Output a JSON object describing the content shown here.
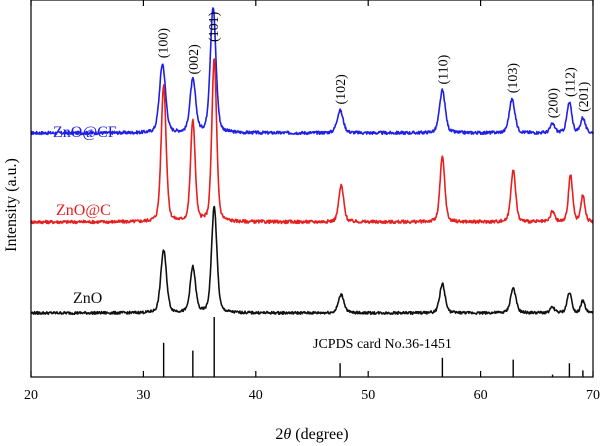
{
  "chart_data": {
    "type": "line",
    "xlabel_pre": "2",
    "xlabel_theta": "θ",
    "xlabel_post": " (degree)",
    "ylabel": "Intensity (a.u.)",
    "xlim": [
      20,
      70
    ],
    "xticks": [
      20,
      30,
      40,
      50,
      60,
      70
    ],
    "colors": {
      "ZnO@CF": "#1f1fe6",
      "ZnO@C": "#e61f1f",
      "ZnO": "#111111",
      "reference": "#000000"
    },
    "series": [
      {
        "name": "ZnO@CF",
        "peaks": [
          {
            "x": 31.7,
            "height": 0.55,
            "width": 0.32
          },
          {
            "x": 34.4,
            "height": 0.42,
            "width": 0.3
          },
          {
            "x": 36.2,
            "height": 1.0,
            "width": 0.3
          },
          {
            "x": 47.5,
            "height": 0.18,
            "width": 0.32
          },
          {
            "x": 56.6,
            "height": 0.34,
            "width": 0.3
          },
          {
            "x": 62.8,
            "height": 0.27,
            "width": 0.3
          },
          {
            "x": 66.4,
            "height": 0.07,
            "width": 0.25
          },
          {
            "x": 67.9,
            "height": 0.24,
            "width": 0.26
          },
          {
            "x": 69.1,
            "height": 0.12,
            "width": 0.24
          }
        ]
      },
      {
        "name": "ZnO@C",
        "peaks": [
          {
            "x": 31.8,
            "height": 1.05,
            "width": 0.26
          },
          {
            "x": 34.4,
            "height": 0.78,
            "width": 0.24
          },
          {
            "x": 36.3,
            "height": 1.25,
            "width": 0.25
          },
          {
            "x": 47.6,
            "height": 0.28,
            "width": 0.26
          },
          {
            "x": 56.6,
            "height": 0.5,
            "width": 0.25
          },
          {
            "x": 62.9,
            "height": 0.4,
            "width": 0.25
          },
          {
            "x": 66.4,
            "height": 0.08,
            "width": 0.22
          },
          {
            "x": 68.0,
            "height": 0.36,
            "width": 0.22
          },
          {
            "x": 69.1,
            "height": 0.2,
            "width": 0.22
          }
        ]
      },
      {
        "name": "ZnO",
        "peaks": [
          {
            "x": 31.8,
            "height": 0.58,
            "width": 0.3
          },
          {
            "x": 34.4,
            "height": 0.42,
            "width": 0.28
          },
          {
            "x": 36.3,
            "height": 0.98,
            "width": 0.28
          },
          {
            "x": 47.6,
            "height": 0.17,
            "width": 0.3
          },
          {
            "x": 56.6,
            "height": 0.27,
            "width": 0.28
          },
          {
            "x": 62.9,
            "height": 0.23,
            "width": 0.28
          },
          {
            "x": 66.4,
            "height": 0.05,
            "width": 0.24
          },
          {
            "x": 67.9,
            "height": 0.19,
            "width": 0.24
          },
          {
            "x": 69.1,
            "height": 0.11,
            "width": 0.22
          }
        ]
      }
    ],
    "peak_labels": [
      {
        "text": "(100)",
        "x": 31.7
      },
      {
        "text": "(002)",
        "x": 34.4
      },
      {
        "text": "(101)",
        "x": 36.2
      },
      {
        "text": "(102)",
        "x": 47.5
      },
      {
        "text": "(110)",
        "x": 56.6
      },
      {
        "text": "(103)",
        "x": 62.8
      },
      {
        "text": "(200)",
        "x": 66.4
      },
      {
        "text": "(112)",
        "x": 67.9
      },
      {
        "text": "(201)",
        "x": 69.1
      }
    ],
    "reference": {
      "label": "JCPDS card No.36-1451",
      "lines": [
        {
          "x": 31.8,
          "intensity": 0.57
        },
        {
          "x": 34.4,
          "intensity": 0.44
        },
        {
          "x": 36.3,
          "intensity": 1.0
        },
        {
          "x": 47.5,
          "intensity": 0.23
        },
        {
          "x": 56.6,
          "intensity": 0.32
        },
        {
          "x": 62.9,
          "intensity": 0.29
        },
        {
          "x": 66.4,
          "intensity": 0.04
        },
        {
          "x": 67.9,
          "intensity": 0.23
        },
        {
          "x": 69.1,
          "intensity": 0.11
        }
      ]
    }
  }
}
